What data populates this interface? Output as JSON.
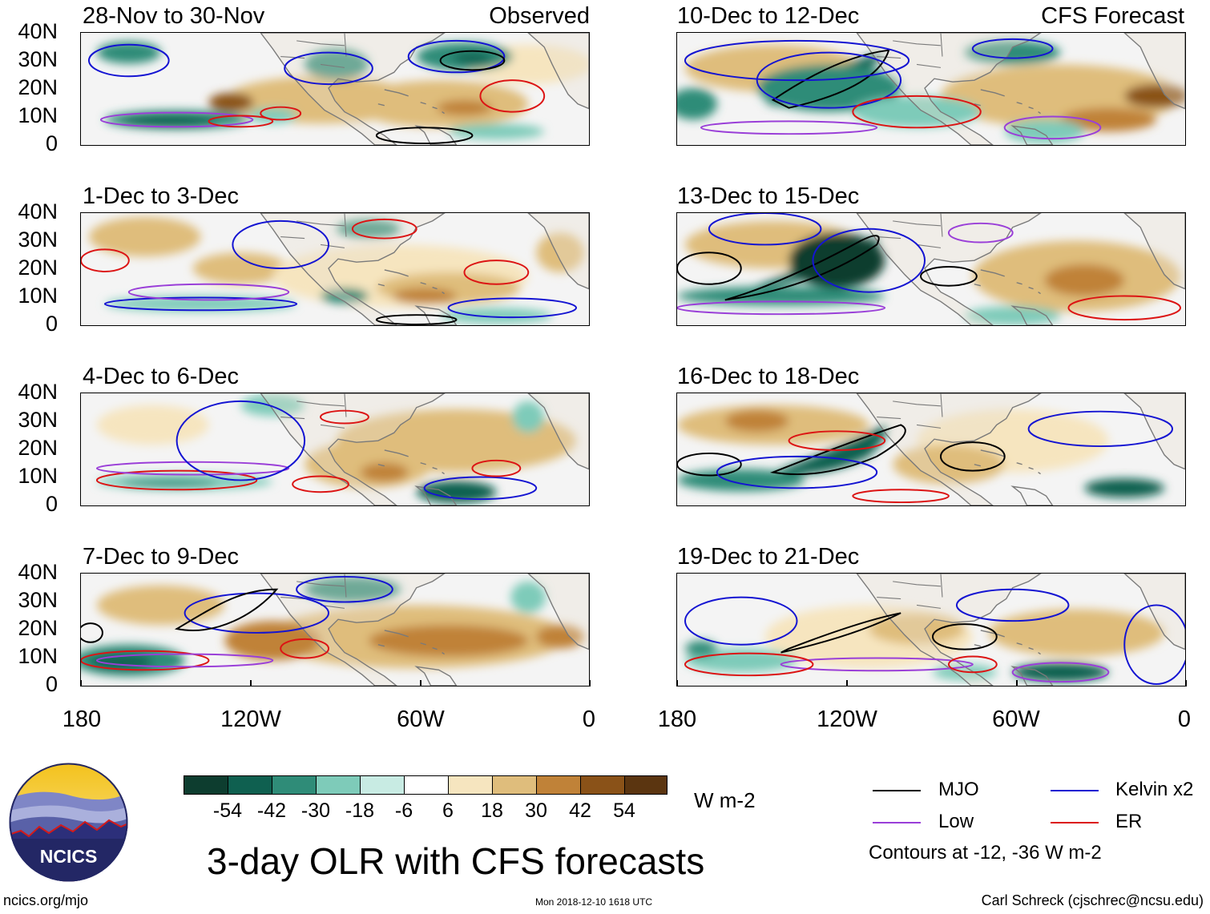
{
  "panels": {
    "p1": {
      "title": "28-Nov to 30-Nov",
      "label": "Observed"
    },
    "p2": {
      "title": "10-Dec to 12-Dec",
      "label": "CFS Forecast"
    },
    "p3": {
      "title": "1-Dec to 3-Dec"
    },
    "p4": {
      "title": "13-Dec to 15-Dec"
    },
    "p5": {
      "title": "4-Dec to 6-Dec"
    },
    "p6": {
      "title": "16-Dec to 18-Dec"
    },
    "p7": {
      "title": "7-Dec to 9-Dec"
    },
    "p8": {
      "title": "19-Dec to 21-Dec"
    }
  },
  "y_axis": {
    "l0": "40N",
    "l1": "30N",
    "l2": "20N",
    "l3": "10N",
    "l4": "0"
  },
  "x_axis": {
    "l0": "180",
    "l1": "120W",
    "l2": "60W",
    "l3": "0"
  },
  "colorbar": {
    "colors": [
      "#0d3d2f",
      "#0f6050",
      "#2f8c78",
      "#7ecbb9",
      "#c8ebe3",
      "#ffffff",
      "#f6e5bf",
      "#dfbd7c",
      "#c08238",
      "#8a5218",
      "#5b3510"
    ],
    "labels": {
      "v0": "-54",
      "v1": "-42",
      "v2": "-30",
      "v3": "-18",
      "v4": "-6",
      "v5": "6",
      "v6": "18",
      "v7": "30",
      "v8": "42",
      "v9": "54"
    },
    "units": "W m-2"
  },
  "legend": {
    "mjo": {
      "label": "MJO",
      "color": "#000000"
    },
    "kelvin": {
      "label": "Kelvin x2",
      "color": "#1414d2"
    },
    "low": {
      "label": "Low",
      "color": "#9a3fd8"
    },
    "er": {
      "label": "ER",
      "color": "#dc1414"
    },
    "contours_note": "Contours at -12, -36 W m-2"
  },
  "title": "3-day OLR with CFS forecasts",
  "logo_text": "NCICS",
  "footer": {
    "url": "ncics.org/mjo",
    "timestamp": "Mon 2018-12-10 1618 UTC",
    "author": "Carl Schreck (cjschrec@ncsu.edu)"
  }
}
